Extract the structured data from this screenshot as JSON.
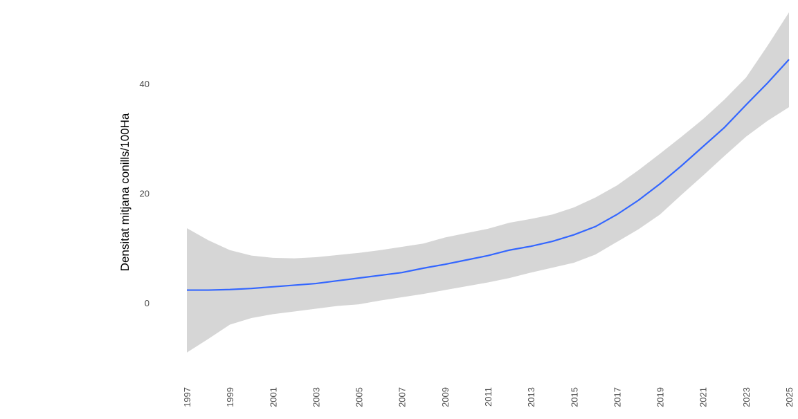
{
  "chart_data": {
    "type": "line",
    "y_label": "Densitat mitjana conills/100Ha",
    "x": [
      1997,
      1998,
      1999,
      2000,
      2001,
      2002,
      2003,
      2004,
      2005,
      2006,
      2007,
      2008,
      2009,
      2010,
      2011,
      2012,
      2013,
      2014,
      2015,
      2016,
      2017,
      2018,
      2019,
      2020,
      2021,
      2022,
      2023,
      2024,
      2025
    ],
    "values": [
      2.3,
      2.3,
      2.4,
      2.6,
      2.9,
      3.2,
      3.5,
      4.0,
      4.5,
      5.0,
      5.5,
      6.3,
      7.0,
      7.8,
      8.6,
      9.6,
      10.3,
      11.2,
      12.4,
      13.9,
      16.1,
      18.7,
      21.7,
      25.0,
      28.5,
      32.0,
      36.1,
      40.1,
      44.4
    ],
    "upper": [
      13.6,
      11.4,
      9.6,
      8.6,
      8.2,
      8.1,
      8.3,
      8.7,
      9.1,
      9.6,
      10.2,
      10.8,
      11.9,
      12.7,
      13.5,
      14.6,
      15.3,
      16.1,
      17.4,
      19.2,
      21.4,
      24.2,
      27.2,
      30.3,
      33.5,
      37.1,
      41.1,
      46.9,
      53.0
    ],
    "lower": [
      -9.1,
      -6.6,
      -4.0,
      -2.8,
      -2.1,
      -1.6,
      -1.1,
      -0.6,
      -0.3,
      0.4,
      1.0,
      1.6,
      2.3,
      3.0,
      3.7,
      4.5,
      5.5,
      6.4,
      7.3,
      8.8,
      11.1,
      13.4,
      16.1,
      19.7,
      23.2,
      26.8,
      30.3,
      33.2,
      35.7
    ],
    "color": "#3366ff",
    "band_color": "#d6d6d6",
    "xlim": [
      1997,
      2025
    ],
    "xticks": [
      1997,
      1999,
      2001,
      2003,
      2005,
      2007,
      2009,
      2011,
      2013,
      2015,
      2017,
      2019,
      2021,
      2023,
      2025
    ],
    "ylim": [
      -10,
      54
    ],
    "yticks": [
      0,
      20,
      40
    ],
    "grid": false
  }
}
